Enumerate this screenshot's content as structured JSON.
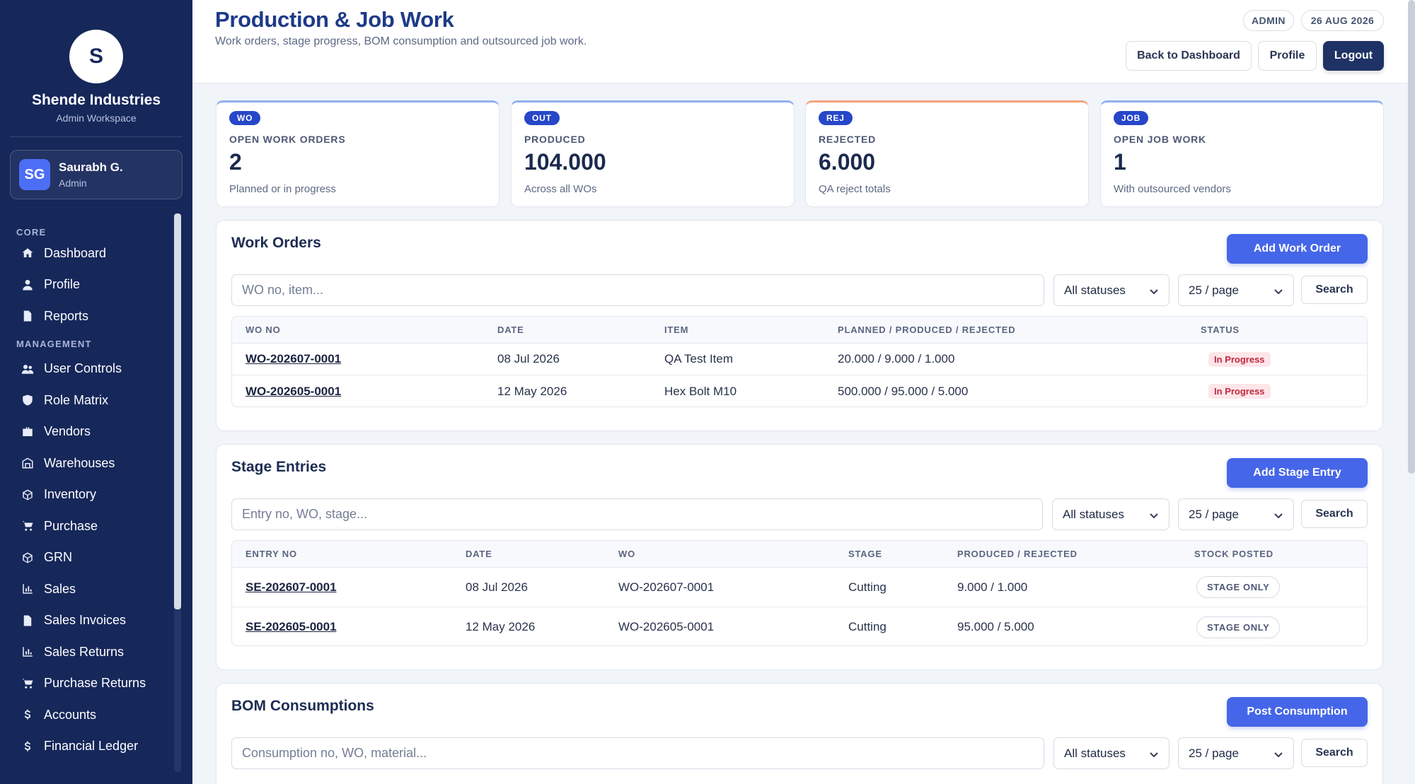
{
  "brand": {
    "initial": "S",
    "name": "Shende Industries",
    "sub": "Admin Workspace"
  },
  "user": {
    "initials": "SG",
    "name": "Saurabh G.",
    "role": "Admin"
  },
  "nav": {
    "core_label": "CORE",
    "core": [
      {
        "label": "Dashboard",
        "icon": "home-icon"
      },
      {
        "label": "Profile",
        "icon": "user-icon"
      },
      {
        "label": "Reports",
        "icon": "file-icon"
      }
    ],
    "management_label": "MANAGEMENT",
    "management": [
      {
        "label": "User Controls",
        "icon": "users-icon"
      },
      {
        "label": "Role Matrix",
        "icon": "shield-icon"
      },
      {
        "label": "Vendors",
        "icon": "briefcase-icon"
      },
      {
        "label": "Warehouses",
        "icon": "warehouse-icon"
      },
      {
        "label": "Inventory",
        "icon": "box-icon"
      },
      {
        "label": "Purchase",
        "icon": "cart-icon"
      },
      {
        "label": "GRN",
        "icon": "box-icon"
      },
      {
        "label": "Sales",
        "icon": "bar-chart-icon"
      },
      {
        "label": "Sales Invoices",
        "icon": "file-icon"
      },
      {
        "label": "Sales Returns",
        "icon": "bar-chart-icon"
      },
      {
        "label": "Purchase Returns",
        "icon": "cart-icon"
      },
      {
        "label": "Accounts",
        "icon": "dollar-icon"
      },
      {
        "label": "Financial Ledger",
        "icon": "dollar-icon"
      }
    ]
  },
  "header": {
    "title": "Production & Job Work",
    "subtitle": "Work orders, stage progress, BOM consumption and outsourced job work.",
    "role_pill": "ADMIN",
    "date_pill": "26 AUG 2026",
    "back_label": "Back to Dashboard",
    "profile_label": "Profile",
    "logout_label": "Logout"
  },
  "stats": [
    {
      "badge": "WO",
      "label": "OPEN WORK ORDERS",
      "value": "2",
      "note": "Planned or in progress"
    },
    {
      "badge": "OUT",
      "label": "PRODUCED",
      "value": "104.000",
      "note": "Across all WOs"
    },
    {
      "badge": "REJ",
      "label": "REJECTED",
      "value": "6.000",
      "note": "QA reject totals"
    },
    {
      "badge": "JOB",
      "label": "OPEN JOB WORK",
      "value": "1",
      "note": "With outsourced vendors"
    }
  ],
  "work_orders": {
    "title": "Work Orders",
    "add_label": "Add Work Order",
    "search_placeholder": "WO no, item...",
    "status_filter": "All statuses",
    "page_size": "25 / page",
    "search_label": "Search",
    "columns": [
      "WO NO",
      "DATE",
      "ITEM",
      "PLANNED / PRODUCED / REJECTED",
      "STATUS"
    ],
    "rows": [
      {
        "wo_no": "WO-202607-0001",
        "date": "08 Jul 2026",
        "item": "QA Test Item",
        "qty": "20.000 / 9.000 / 1.000",
        "status": "In Progress"
      },
      {
        "wo_no": "WO-202605-0001",
        "date": "12 May 2026",
        "item": "Hex Bolt M10",
        "qty": "500.000 / 95.000 / 5.000",
        "status": "In Progress"
      }
    ]
  },
  "stage_entries": {
    "title": "Stage Entries",
    "add_label": "Add Stage Entry",
    "search_placeholder": "Entry no, WO, stage...",
    "status_filter": "All statuses",
    "page_size": "25 / page",
    "search_label": "Search",
    "columns": [
      "ENTRY NO",
      "DATE",
      "WO",
      "STAGE",
      "PRODUCED / REJECTED",
      "STOCK POSTED"
    ],
    "rows": [
      {
        "entry_no": "SE-202607-0001",
        "date": "08 Jul 2026",
        "wo": "WO-202607-0001",
        "stage": "Cutting",
        "qty": "9.000 / 1.000",
        "posted": "STAGE ONLY"
      },
      {
        "entry_no": "SE-202605-0001",
        "date": "12 May 2026",
        "wo": "WO-202605-0001",
        "stage": "Cutting",
        "qty": "95.000 / 5.000",
        "posted": "STAGE ONLY"
      }
    ]
  },
  "bom": {
    "title": "BOM Consumptions",
    "add_label": "Post Consumption",
    "search_placeholder": "Consumption no, WO, material...",
    "status_filter": "All statuses",
    "page_size": "25 / page",
    "search_label": "Search"
  }
}
